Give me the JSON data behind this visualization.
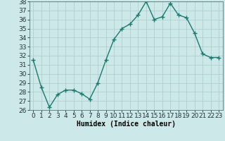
{
  "x": [
    0,
    1,
    2,
    3,
    4,
    5,
    6,
    7,
    8,
    9,
    10,
    11,
    12,
    13,
    14,
    15,
    16,
    17,
    18,
    19,
    20,
    21,
    22,
    23
  ],
  "y": [
    31.5,
    28.5,
    26.3,
    27.7,
    28.2,
    28.2,
    27.8,
    27.2,
    29.0,
    31.5,
    33.8,
    35.0,
    35.5,
    36.5,
    38.0,
    36.0,
    36.3,
    37.8,
    36.5,
    36.2,
    34.5,
    32.2,
    31.8,
    31.8
  ],
  "xlabel": "Humidex (Indice chaleur)",
  "ylim": [
    26,
    38
  ],
  "xlim_left": -0.5,
  "xlim_right": 23.5,
  "yticks": [
    26,
    27,
    28,
    29,
    30,
    31,
    32,
    33,
    34,
    35,
    36,
    37,
    38
  ],
  "xticks": [
    0,
    1,
    2,
    3,
    4,
    5,
    6,
    7,
    8,
    9,
    10,
    11,
    12,
    13,
    14,
    15,
    16,
    17,
    18,
    19,
    20,
    21,
    22,
    23
  ],
  "line_color": "#1a7a6e",
  "marker_color": "#1a7a6e",
  "bg_color": "#cce8e8",
  "grid_color": "#aacccc",
  "xlabel_fontsize": 7,
  "tick_fontsize": 6.5,
  "line_width": 1.0,
  "marker_size": 4
}
